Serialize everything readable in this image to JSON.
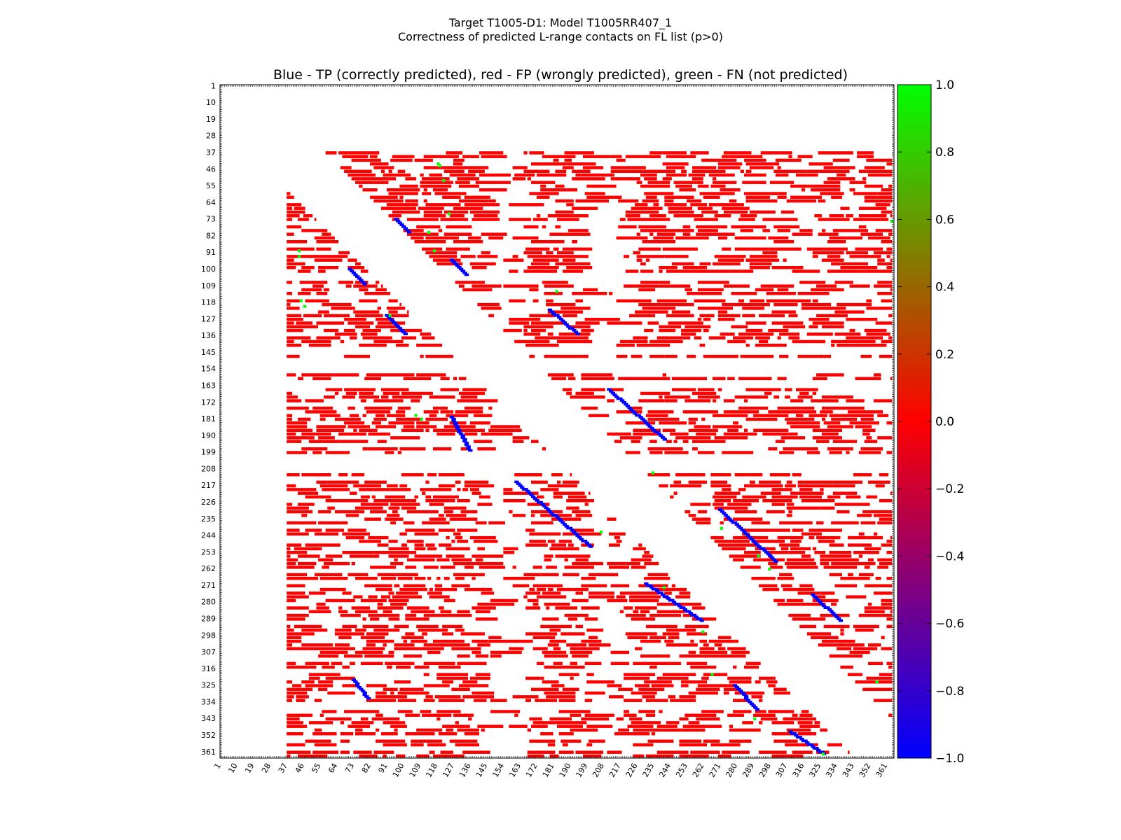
{
  "suptitle_lines": [
    "Target T1005-D1: Model T1005RR407_1",
    "Correctness of predicted L-range contacts on FL list (p>0)"
  ],
  "chart_data": {
    "type": "heatmap",
    "title": "Blue - TP (correctly predicted), red - FP (wrongly predicted), green - FN (not predicted)",
    "xlabel": "",
    "ylabel": "",
    "x_tick_labels": [
      "1",
      "10",
      "19",
      "28",
      "37",
      "46",
      "55",
      "64",
      "73",
      "82",
      "91",
      "100",
      "109",
      "118",
      "127",
      "136",
      "145",
      "154",
      "163",
      "172",
      "181",
      "190",
      "199",
      "208",
      "217",
      "226",
      "235",
      "244",
      "253",
      "262",
      "271",
      "280",
      "289",
      "298",
      "307",
      "316",
      "325",
      "334",
      "343",
      "352",
      "361"
    ],
    "y_tick_labels": [
      "1",
      "10",
      "19",
      "28",
      "37",
      "46",
      "55",
      "64",
      "73",
      "82",
      "91",
      "100",
      "109",
      "118",
      "127",
      "136",
      "145",
      "154",
      "163",
      "172",
      "181",
      "190",
      "199",
      "208",
      "217",
      "226",
      "235",
      "244",
      "253",
      "262",
      "271",
      "280",
      "289",
      "298",
      "307",
      "316",
      "325",
      "334",
      "343",
      "352",
      "361"
    ],
    "residue_range": [
      1,
      364
    ],
    "colorbar": {
      "range": [
        -1.0,
        1.0
      ],
      "tick_labels": [
        "1.0",
        "0.8",
        "0.6",
        "0.4",
        "0.2",
        "0.0",
        "−0.2",
        "−0.4",
        "−0.6",
        "−0.8",
        "−1.0"
      ],
      "colors": [
        "#0000ff",
        "#ff0000",
        "#00ff00"
      ]
    },
    "categories": [
      {
        "name": "TP",
        "value": -1,
        "color": "#0000ff"
      },
      {
        "name": "FP",
        "value": 0,
        "color": "#ff0000"
      },
      {
        "name": "FN",
        "value": 1,
        "color": "#00ff00"
      }
    ],
    "upper_triangle_start_residue": 37,
    "lower_triangle_start_residue": 37,
    "tp_diagonals": [
      {
        "i_range": [
          73,
          80
        ],
        "j_range": [
          95,
          102
        ]
      },
      {
        "i_range": [
          95,
          103
        ],
        "j_range": [
          125,
          133
        ]
      },
      {
        "i_range": [
          122,
          135
        ],
        "j_range": [
          178,
          193
        ]
      },
      {
        "i_range": [
          165,
          192
        ],
        "j_range": [
          210,
          240
        ]
      },
      {
        "i_range": [
          230,
          258
        ],
        "j_range": [
          270,
          300
        ]
      },
      {
        "i_range": [
          276,
          290
        ],
        "j_range": [
          320,
          335
        ]
      },
      {
        "i_range": [
          100,
          108
        ],
        "j_range": [
          70,
          78
        ]
      },
      {
        "i_range": [
          125,
          135
        ],
        "j_range": [
          90,
          100
        ]
      },
      {
        "i_range": [
          180,
          198
        ],
        "j_range": [
          125,
          135
        ]
      },
      {
        "i_range": [
          215,
          250
        ],
        "j_range": [
          160,
          200
        ]
      },
      {
        "i_range": [
          270,
          290
        ],
        "j_range": [
          230,
          260
        ]
      },
      {
        "i_range": [
          322,
          332
        ],
        "j_range": [
          72,
          80
        ]
      },
      {
        "i_range": [
          325,
          338
        ],
        "j_range": [
          278,
          290
        ]
      },
      {
        "i_range": [
          350,
          362
        ],
        "j_range": [
          308,
          326
        ]
      }
    ],
    "fn_points": [
      [
        43,
        118
      ],
      [
        44,
        119
      ],
      [
        52,
        121
      ],
      [
        70,
        124
      ],
      [
        80,
        113
      ],
      [
        90,
        116
      ],
      [
        112,
        182
      ],
      [
        117,
        44
      ],
      [
        120,
        46
      ],
      [
        125,
        92
      ],
      [
        179,
        106
      ],
      [
        181,
        109
      ],
      [
        210,
        234
      ],
      [
        240,
        271
      ],
      [
        242,
        206
      ],
      [
        255,
        291
      ],
      [
        262,
        297
      ],
      [
        272,
        240
      ],
      [
        296,
        261
      ],
      [
        319,
        266
      ],
      [
        323,
        355
      ],
      [
        343,
        289
      ],
      [
        362,
        326
      ],
      [
        74,
        363
      ],
      [
        90,
        43
      ],
      [
        93,
        43
      ]
    ]
  }
}
